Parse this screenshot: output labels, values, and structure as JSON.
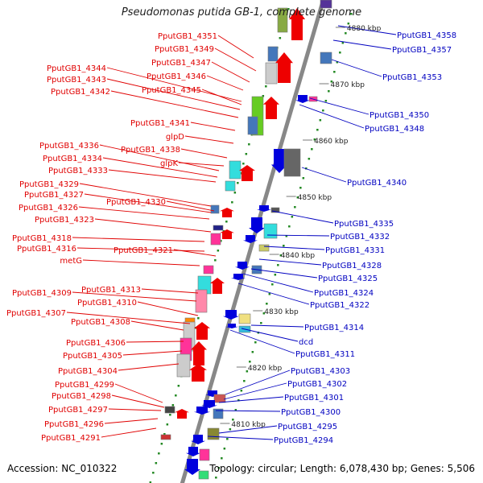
{
  "title": "Pseudomonas putida GB-1, complete genome",
  "accession": "Accession: NC_010322",
  "summary": "Topology: circular; Length: 6,078,430 bp; Genes: 5,506",
  "colors": {
    "left_label": "#e00000",
    "right_label": "#0000c0",
    "left_arrow": "#ee0000",
    "right_arrow": "#0000dd",
    "backbone": "#888888",
    "tick": "#228822"
  },
  "scale_marks": [
    {
      "label": "4880 kbp"
    },
    {
      "label": "4870 kbp"
    },
    {
      "label": "4860 kbp"
    },
    {
      "label": "4850 kbp"
    },
    {
      "label": "4840 kbp"
    },
    {
      "label": "4830 kbp"
    },
    {
      "label": "4820 kbp"
    },
    {
      "label": "4810 kbp"
    }
  ],
  "left_labels": [
    "PputGB1_4351",
    "PputGB1_4349",
    "PputGB1_4347",
    "PputGB1_4344",
    "PputGB1_4346",
    "PputGB1_4343",
    "PputGB1_4345",
    "PputGB1_4342",
    "PputGB1_4341",
    "glpD",
    "PputGB1_4336",
    "PputGB1_4338",
    "PputGB1_4334",
    "glpK",
    "PputGB1_4333",
    "PputGB1_4329",
    "PputGB1_4327",
    "PputGB1_4330",
    "PputGB1_4326",
    "PputGB1_4323",
    "PputGB1_4318",
    "PputGB1_4316",
    "PputGB1_4321",
    "metG",
    "PputGB1_4313",
    "PputGB1_4309",
    "PputGB1_4310",
    "PputGB1_4307",
    "PputGB1_4308",
    "PputGB1_4306",
    "PputGB1_4305",
    "PputGB1_4304",
    "PputGB1_4299",
    "PputGB1_4298",
    "PputGB1_4297",
    "PputGB1_4296",
    "PputGB1_4291"
  ],
  "right_labels": [
    "PputGB1_4358",
    "PputGB1_4357",
    "PputGB1_4353",
    "PputGB1_4350",
    "PputGB1_4348",
    "PputGB1_4340",
    "PputGB1_4335",
    "PputGB1_4332",
    "PputGB1_4331",
    "PputGB1_4328",
    "PputGB1_4325",
    "PputGB1_4324",
    "PputGB1_4322",
    "PputGB1_4314",
    "dcd",
    "PputGB1_4311",
    "PputGB1_4303",
    "PputGB1_4302",
    "PputGB1_4301",
    "PputGB1_4300",
    "PputGB1_4295",
    "PputGB1_4294"
  ]
}
